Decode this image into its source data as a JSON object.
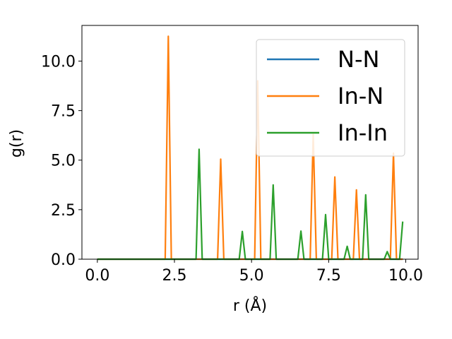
{
  "chart_data": {
    "type": "line",
    "xlabel": "r (Å)",
    "ylabel": "g(r)",
    "xlim": [
      -0.5,
      10.4
    ],
    "ylim": [
      0,
      11.8
    ],
    "xticks": [
      "0.0",
      "2.5",
      "5.0",
      "7.5",
      "10.0"
    ],
    "xtick_values": [
      0,
      2.5,
      5.0,
      7.5,
      10.0
    ],
    "yticks": [
      "0.0",
      "2.5",
      "5.0",
      "7.5",
      "10.0"
    ],
    "ytick_values": [
      0,
      2.5,
      5.0,
      7.5,
      10.0
    ],
    "grid": false,
    "legend_position": "top-right",
    "series": [
      {
        "name": "N-N",
        "color": "#1f77b4",
        "x": [
          0,
          9.9
        ],
        "y": [
          0,
          0
        ]
      },
      {
        "name": "In-N",
        "color": "#ff7f0e",
        "x": [
          0,
          2.2,
          2.3,
          2.4,
          3.9,
          4.0,
          4.1,
          5.1,
          5.2,
          5.3,
          6.9,
          7.0,
          7.1,
          7.6,
          7.7,
          7.8,
          8.3,
          8.4,
          8.5,
          9.5,
          9.6,
          9.7,
          9.9
        ],
        "y": [
          0,
          0,
          11.25,
          0,
          0,
          5.05,
          0,
          0,
          9.0,
          0,
          0,
          6.3,
          0,
          0,
          4.15,
          0,
          0,
          3.5,
          0,
          0,
          5.35,
          0,
          0
        ]
      },
      {
        "name": "In-In",
        "color": "#2ca02c",
        "x": [
          0,
          3.2,
          3.3,
          3.4,
          4.6,
          4.7,
          4.8,
          5.6,
          5.7,
          5.8,
          6.5,
          6.6,
          6.7,
          7.3,
          7.4,
          7.5,
          8.0,
          8.1,
          8.2,
          8.6,
          8.7,
          8.8,
          9.3,
          9.4,
          9.5,
          9.8,
          9.9
        ],
        "y": [
          0,
          0,
          5.55,
          0,
          0,
          1.4,
          0,
          0,
          3.75,
          0,
          0,
          1.42,
          0,
          0,
          2.25,
          0,
          0,
          0.65,
          0,
          0,
          3.25,
          0,
          0,
          0.38,
          0,
          0,
          1.9
        ]
      }
    ]
  }
}
